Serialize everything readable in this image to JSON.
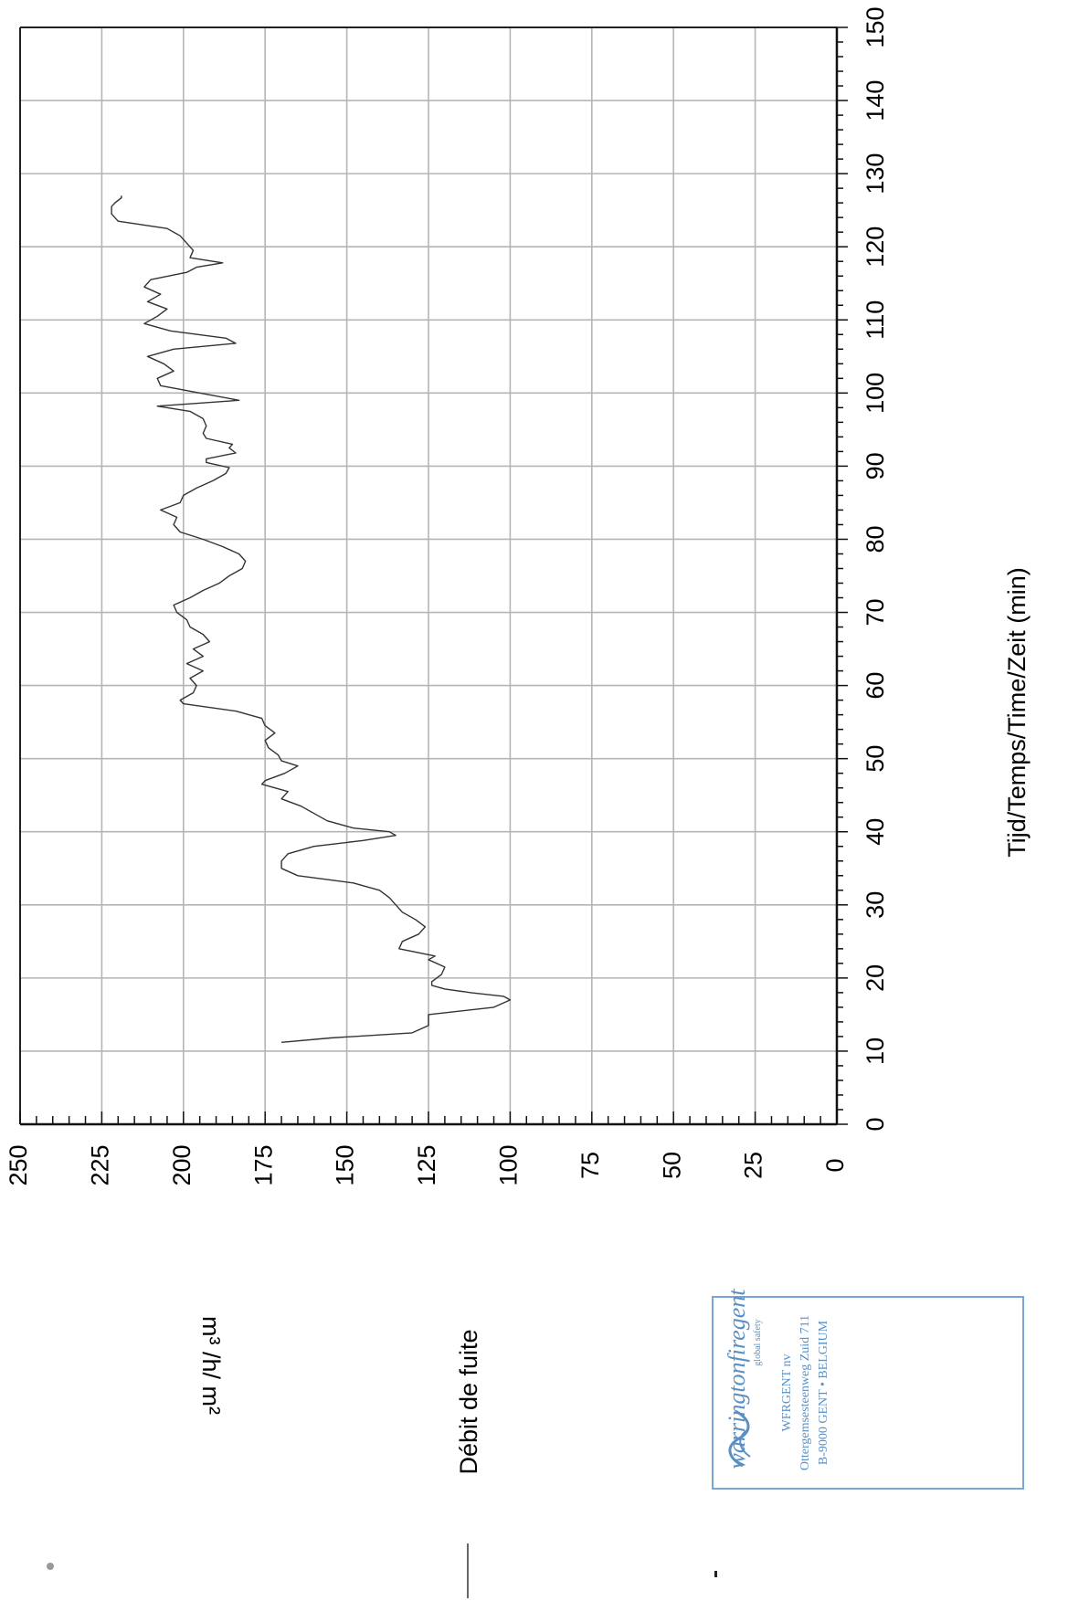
{
  "chart_data": {
    "type": "line",
    "orientation": "rotated-90-clockwise",
    "xlabel": "Tijd/Temps/Time/Zeit (min)",
    "ylabel": "m³ /h/ m²",
    "xlim": [
      0,
      150
    ],
    "ylim": [
      0,
      250
    ],
    "x_ticks": [
      "0",
      "10",
      "20",
      "30",
      "40",
      "50",
      "60",
      "70",
      "80",
      "90",
      "100",
      "110",
      "120",
      "130",
      "140",
      "150"
    ],
    "y_ticks": [
      "0",
      "25",
      "50",
      "75",
      "100",
      "125",
      "150",
      "175",
      "200",
      "225",
      "250"
    ],
    "grid": true,
    "legend": {
      "position": "bottom-left",
      "label": "Débit de fuite"
    },
    "series": [
      {
        "name": "Débit de fuite",
        "color": "#333333",
        "x": [
          11.2,
          11.8,
          12.5,
          13.5,
          14.5,
          15.0,
          16.0,
          17.0,
          17.5,
          18.0,
          18.5,
          19.0,
          19.5,
          20.5,
          21.5,
          22.5,
          23.0,
          24.0,
          25.0,
          26.0,
          27.0,
          28.0,
          29.0,
          30.0,
          31.0,
          32.0,
          33.0,
          34.0,
          35.0,
          36.0,
          37.0,
          38.0,
          38.8,
          39.5,
          40.0,
          40.5,
          41.5,
          42.5,
          43.5,
          44.5,
          45.5,
          46.5,
          47.0,
          48.0,
          49.0,
          49.7,
          50.5,
          51.5,
          52.5,
          53.5,
          54.5,
          55.5,
          56.5,
          57.5,
          58.0,
          59.0,
          60.0,
          61.0,
          62.0,
          63.0,
          64.0,
          65.0,
          66.0,
          67.0,
          68.0,
          69.0,
          70.0,
          71.0,
          72.0,
          73.0,
          74.0,
          75.0,
          76.0,
          77.0,
          78.0,
          79.0,
          80.0,
          81.0,
          82.0,
          83.0,
          84.0,
          85.0,
          86.0,
          87.0,
          88.0,
          89.0,
          89.8,
          90.5,
          91.0,
          91.8,
          92.5,
          93.0,
          93.8,
          94.5,
          95.5,
          96.5,
          97.5,
          98.2,
          99.0,
          100.0,
          101.0,
          102.0,
          103.0,
          104.0,
          105.0,
          106.0,
          106.8,
          107.5,
          108.5,
          109.5,
          110.5,
          111.5,
          112.5,
          113.5,
          114.5,
          115.5,
          116.5,
          117.2,
          117.8,
          118.5,
          119.5,
          120.5,
          121.5,
          122.5,
          123.5,
          124.5,
          125.5,
          126.0,
          126.7,
          127.0
        ],
        "y": [
          170,
          155,
          130,
          125,
          125,
          125,
          105,
          100,
          102,
          112,
          120,
          124,
          124,
          121,
          120,
          125,
          123,
          134,
          133,
          128,
          126,
          129,
          133,
          135,
          137,
          140,
          148,
          165,
          170,
          170,
          168,
          160,
          145,
          135,
          137,
          148,
          156,
          160,
          164,
          170,
          168,
          176,
          175,
          169,
          165,
          170,
          171,
          174,
          175,
          172,
          175,
          176,
          184,
          200,
          201,
          197,
          196,
          198,
          194,
          199,
          194,
          197,
          192,
          194,
          198,
          199,
          202,
          203,
          198,
          194,
          189,
          186,
          182,
          181,
          183,
          188,
          194,
          201,
          203,
          202,
          207,
          201,
          200,
          196,
          191,
          187,
          186,
          193,
          193,
          184,
          186,
          185,
          193,
          194,
          193,
          194,
          198,
          208,
          183,
          195,
          207,
          208,
          203,
          206,
          211,
          203,
          184,
          187,
          204,
          212,
          208,
          205,
          211,
          207,
          212,
          210,
          199,
          196,
          188,
          198,
          197,
          199,
          201,
          205,
          220,
          222,
          222,
          221,
          219,
          219
        ]
      }
    ]
  },
  "stamp": {
    "logo_text": "warringtonfiregent",
    "logo_subtext": "global safety",
    "company": "WFRGENT nv",
    "address_line1": "Ottergemsesteenweg Zuid 711",
    "address_line2": "B-9000 GENT • BELGIUM",
    "color": "#5a8fc4"
  }
}
